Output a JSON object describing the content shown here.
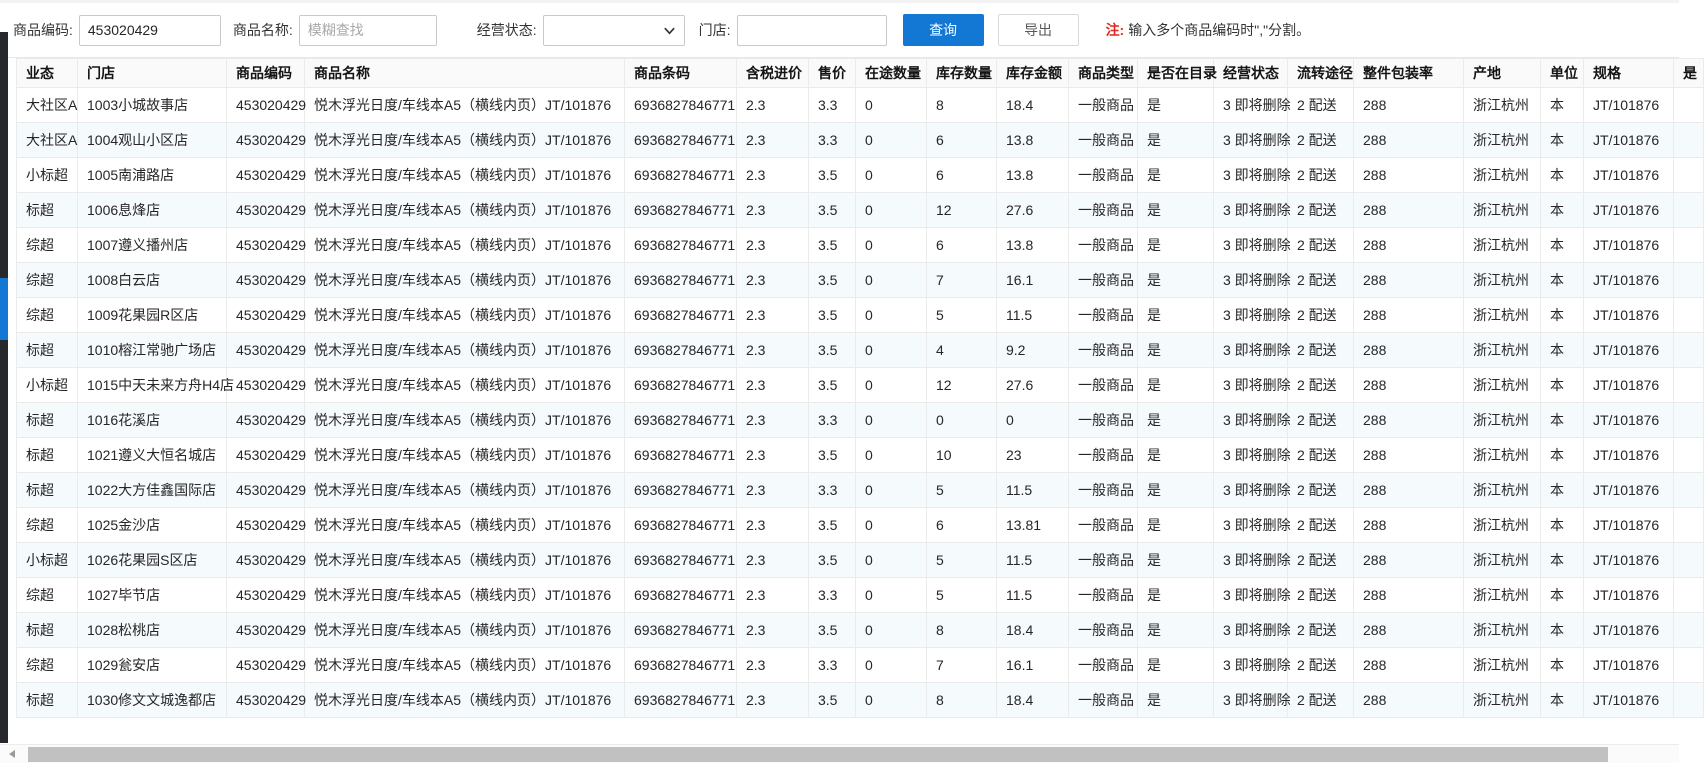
{
  "colors": {
    "accent_blue": "#1377d4",
    "note_red": "#e02a1f",
    "zebra_row_bg": "#f5fafd",
    "header_bg": "#fafafa",
    "left_strip_bg": "#27272e",
    "scroll_thumb": "#c1c1c1"
  },
  "filter_bar": {
    "product_code_label": "商品编码:",
    "product_code_value": "453020429",
    "product_name_label": "商品名称:",
    "product_name_placeholder": "模糊查找",
    "status_label": "经营状态:",
    "status_selected_value": "",
    "store_label": "门店:",
    "store_value": "",
    "query_button": "查询",
    "export_button": "导出",
    "note_prefix": "注:",
    "note_text": "输入多个商品编码时\",\"分割。"
  },
  "icons": {
    "status_select_chevron": "chevron-down-icon",
    "scrollbar_left_arrow": "scroll-left-arrow-icon"
  },
  "table": {
    "columns": [
      "业态",
      "门店",
      "商品编码",
      "商品名称",
      "商品条码",
      "含税进价",
      "售价",
      "在途数量",
      "库存数量",
      "库存金额",
      "商品类型",
      "是否在目录",
      "经营状态",
      "流转途径",
      "整件包装率",
      "产地",
      "单位",
      "规格"
    ],
    "partial_column_header": "是",
    "rows": [
      [
        "大社区A",
        "1003小城故事店",
        "453020429",
        "悦木浮光日度/车线本A5（横线内页）JT/101876",
        "6936827846771",
        "2.3",
        "3.3",
        "0",
        "8",
        "18.4",
        "一般商品",
        "是",
        "3 即将删除",
        "2 配送",
        "288",
        "浙江杭州",
        "本",
        "JT/101876"
      ],
      [
        "大社区A",
        "1004观山小区店",
        "453020429",
        "悦木浮光日度/车线本A5（横线内页）JT/101876",
        "6936827846771",
        "2.3",
        "3.3",
        "0",
        "6",
        "13.8",
        "一般商品",
        "是",
        "3 即将删除",
        "2 配送",
        "288",
        "浙江杭州",
        "本",
        "JT/101876"
      ],
      [
        "小标超",
        "1005南浦路店",
        "453020429",
        "悦木浮光日度/车线本A5（横线内页）JT/101876",
        "6936827846771",
        "2.3",
        "3.5",
        "0",
        "6",
        "13.8",
        "一般商品",
        "是",
        "3 即将删除",
        "2 配送",
        "288",
        "浙江杭州",
        "本",
        "JT/101876"
      ],
      [
        "标超",
        "1006息烽店",
        "453020429",
        "悦木浮光日度/车线本A5（横线内页）JT/101876",
        "6936827846771",
        "2.3",
        "3.5",
        "0",
        "12",
        "27.6",
        "一般商品",
        "是",
        "3 即将删除",
        "2 配送",
        "288",
        "浙江杭州",
        "本",
        "JT/101876"
      ],
      [
        "综超",
        "1007遵义播州店",
        "453020429",
        "悦木浮光日度/车线本A5（横线内页）JT/101876",
        "6936827846771",
        "2.3",
        "3.5",
        "0",
        "6",
        "13.8",
        "一般商品",
        "是",
        "3 即将删除",
        "2 配送",
        "288",
        "浙江杭州",
        "本",
        "JT/101876"
      ],
      [
        "综超",
        "1008白云店",
        "453020429",
        "悦木浮光日度/车线本A5（横线内页）JT/101876",
        "6936827846771",
        "2.3",
        "3.5",
        "0",
        "7",
        "16.1",
        "一般商品",
        "是",
        "3 即将删除",
        "2 配送",
        "288",
        "浙江杭州",
        "本",
        "JT/101876"
      ],
      [
        "综超",
        "1009花果园R区店",
        "453020429",
        "悦木浮光日度/车线本A5（横线内页）JT/101876",
        "6936827846771",
        "2.3",
        "3.5",
        "0",
        "5",
        "11.5",
        "一般商品",
        "是",
        "3 即将删除",
        "2 配送",
        "288",
        "浙江杭州",
        "本",
        "JT/101876"
      ],
      [
        "标超",
        "1010榕江常驰广场店",
        "453020429",
        "悦木浮光日度/车线本A5（横线内页）JT/101876",
        "6936827846771",
        "2.3",
        "3.5",
        "0",
        "4",
        "9.2",
        "一般商品",
        "是",
        "3 即将删除",
        "2 配送",
        "288",
        "浙江杭州",
        "本",
        "JT/101876"
      ],
      [
        "小标超",
        "1015中天未来方舟H4店",
        "453020429",
        "悦木浮光日度/车线本A5（横线内页）JT/101876",
        "6936827846771",
        "2.3",
        "3.5",
        "0",
        "12",
        "27.6",
        "一般商品",
        "是",
        "3 即将删除",
        "2 配送",
        "288",
        "浙江杭州",
        "本",
        "JT/101876"
      ],
      [
        "标超",
        "1016花溪店",
        "453020429",
        "悦木浮光日度/车线本A5（横线内页）JT/101876",
        "6936827846771",
        "2.3",
        "3.3",
        "0",
        "0",
        "0",
        "一般商品",
        "是",
        "3 即将删除",
        "2 配送",
        "288",
        "浙江杭州",
        "本",
        "JT/101876"
      ],
      [
        "标超",
        "1021遵义大恒名城店",
        "453020429",
        "悦木浮光日度/车线本A5（横线内页）JT/101876",
        "6936827846771",
        "2.3",
        "3.5",
        "0",
        "10",
        "23",
        "一般商品",
        "是",
        "3 即将删除",
        "2 配送",
        "288",
        "浙江杭州",
        "本",
        "JT/101876"
      ],
      [
        "标超",
        "1022大方佳鑫国际店",
        "453020429",
        "悦木浮光日度/车线本A5（横线内页）JT/101876",
        "6936827846771",
        "2.3",
        "3.3",
        "0",
        "5",
        "11.5",
        "一般商品",
        "是",
        "3 即将删除",
        "2 配送",
        "288",
        "浙江杭州",
        "本",
        "JT/101876"
      ],
      [
        "综超",
        "1025金沙店",
        "453020429",
        "悦木浮光日度/车线本A5（横线内页）JT/101876",
        "6936827846771",
        "2.3",
        "3.5",
        "0",
        "6",
        "13.81",
        "一般商品",
        "是",
        "3 即将删除",
        "2 配送",
        "288",
        "浙江杭州",
        "本",
        "JT/101876"
      ],
      [
        "小标超",
        "1026花果园S区店",
        "453020429",
        "悦木浮光日度/车线本A5（横线内页）JT/101876",
        "6936827846771",
        "2.3",
        "3.5",
        "0",
        "5",
        "11.5",
        "一般商品",
        "是",
        "3 即将删除",
        "2 配送",
        "288",
        "浙江杭州",
        "本",
        "JT/101876"
      ],
      [
        "综超",
        "1027毕节店",
        "453020429",
        "悦木浮光日度/车线本A5（横线内页）JT/101876",
        "6936827846771",
        "2.3",
        "3.3",
        "0",
        "5",
        "11.5",
        "一般商品",
        "是",
        "3 即将删除",
        "2 配送",
        "288",
        "浙江杭州",
        "本",
        "JT/101876"
      ],
      [
        "标超",
        "1028松桃店",
        "453020429",
        "悦木浮光日度/车线本A5（横线内页）JT/101876",
        "6936827846771",
        "2.3",
        "3.5",
        "0",
        "8",
        "18.4",
        "一般商品",
        "是",
        "3 即将删除",
        "2 配送",
        "288",
        "浙江杭州",
        "本",
        "JT/101876"
      ],
      [
        "综超",
        "1029瓮安店",
        "453020429",
        "悦木浮光日度/车线本A5（横线内页）JT/101876",
        "6936827846771",
        "2.3",
        "3.3",
        "0",
        "7",
        "16.1",
        "一般商品",
        "是",
        "3 即将删除",
        "2 配送",
        "288",
        "浙江杭州",
        "本",
        "JT/101876"
      ],
      [
        "标超",
        "1030修文文城逸都店",
        "453020429",
        "悦木浮光日度/车线本A5（横线内页）JT/101876",
        "6936827846771",
        "2.3",
        "3.5",
        "0",
        "8",
        "18.4",
        "一般商品",
        "是",
        "3 即将删除",
        "2 配送",
        "288",
        "浙江杭州",
        "本",
        "JT/101876"
      ]
    ]
  }
}
